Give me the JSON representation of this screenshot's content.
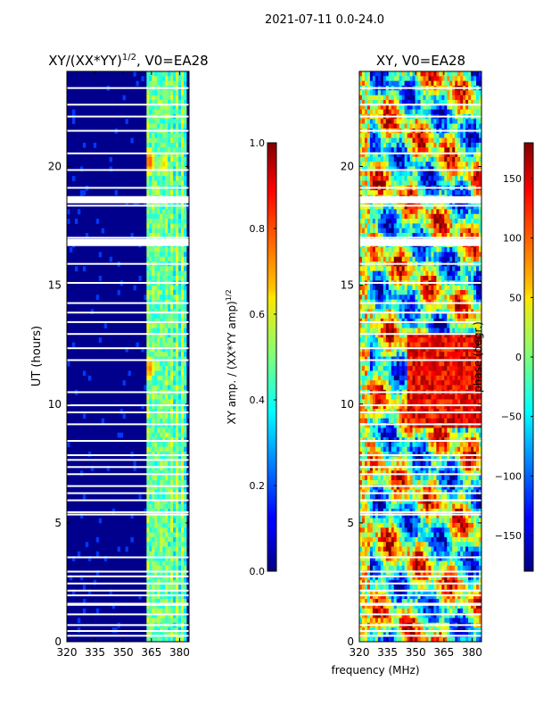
{
  "figure": {
    "suptitle": "2021-07-11 0.0-24.0"
  },
  "chart_data": [
    {
      "type": "heatmap",
      "title": "XY/(XX*YY)",
      "title_superscript": "1/2",
      "title_suffix": ", V0=EA28",
      "xlabel": "",
      "ylabel": "UT (hours)",
      "xlim": [
        320,
        385
      ],
      "ylim": [
        0,
        24
      ],
      "xticks": [
        320,
        335,
        350,
        365,
        380
      ],
      "yticks": [
        0,
        5,
        10,
        15,
        20
      ],
      "bright_band_mhz": [
        362,
        383
      ],
      "bright_columns_mhz": [
        363.5,
        366.5,
        369.5,
        372.5,
        375.5,
        378.5,
        381.5
      ],
      "hot_spots": [
        {
          "mhz": 364,
          "ut": 20.2,
          "value": 0.85
        },
        {
          "mhz": 364,
          "ut": 11.5,
          "value": 0.8
        },
        {
          "mhz": 372,
          "ut": 20.1,
          "value": 0.7
        }
      ],
      "flag_gap_hours": [
        0.25,
        0.45,
        0.7,
        1.15,
        1.55,
        1.6,
        1.95,
        2.15,
        2.45,
        2.75,
        2.95,
        3.55,
        5.35,
        5.45,
        5.95,
        6.25,
        6.55,
        7.05,
        7.35,
        7.65,
        7.85,
        8.45,
        9.15,
        9.65,
        9.95,
        10.5,
        11.85,
        12.35,
        12.95,
        13.45,
        13.85,
        14.25,
        15.1,
        15.9,
        16.75,
        17.0,
        18.35,
        18.5,
        19.1,
        19.85,
        20.55,
        21.5,
        22.1,
        22.6,
        23.3
      ],
      "flag_band_hours": [
        [
          16.65,
          16.95
        ],
        [
          18.45,
          18.75
        ]
      ],
      "colorbar": {
        "range": [
          0.0,
          1.0
        ],
        "ticks": [
          0.0,
          0.2,
          0.4,
          0.6,
          0.8,
          1.0
        ],
        "tick_labels": [
          "0.0",
          "0.2",
          "0.4",
          "0.6",
          "0.8",
          "1.0"
        ],
        "label": "XY amp. / (XX*YY amp)",
        "label_superscript": "1/2",
        "colormap": "jet"
      }
    },
    {
      "type": "heatmap",
      "title": "XY, V0=EA28",
      "xlabel": "frequency (MHz)",
      "ylabel": "",
      "xlim": [
        320,
        385
      ],
      "ylim": [
        0,
        24
      ],
      "xticks": [
        320,
        335,
        350,
        365,
        380
      ],
      "yticks": [
        0,
        5,
        10,
        15,
        20
      ],
      "value_range": [
        -180,
        180
      ],
      "flag_gap_hours": [
        0.25,
        0.45,
        0.7,
        1.15,
        1.55,
        1.6,
        1.95,
        2.15,
        2.45,
        2.75,
        2.95,
        3.55,
        5.35,
        5.45,
        5.95,
        6.25,
        6.55,
        7.05,
        7.35,
        7.65,
        7.85,
        8.45,
        9.15,
        9.65,
        9.95,
        10.5,
        11.85,
        12.35,
        12.95,
        13.45,
        13.85,
        14.25,
        15.1,
        15.9,
        16.75,
        17.0,
        18.35,
        18.5,
        19.1,
        19.85,
        20.55,
        21.5,
        22.1,
        22.6,
        23.3
      ],
      "flag_band_hours": [
        [
          16.65,
          16.95
        ],
        [
          18.45,
          18.75
        ]
      ],
      "colorbar": {
        "range": [
          -180,
          180
        ],
        "ticks": [
          150,
          100,
          50,
          0,
          -50,
          -100,
          -150
        ],
        "tick_labels": [
          "150",
          "100",
          "50",
          "0",
          "−50",
          "−100",
          "−150"
        ],
        "label": "phase (degr.)",
        "colormap": "jet"
      }
    }
  ]
}
